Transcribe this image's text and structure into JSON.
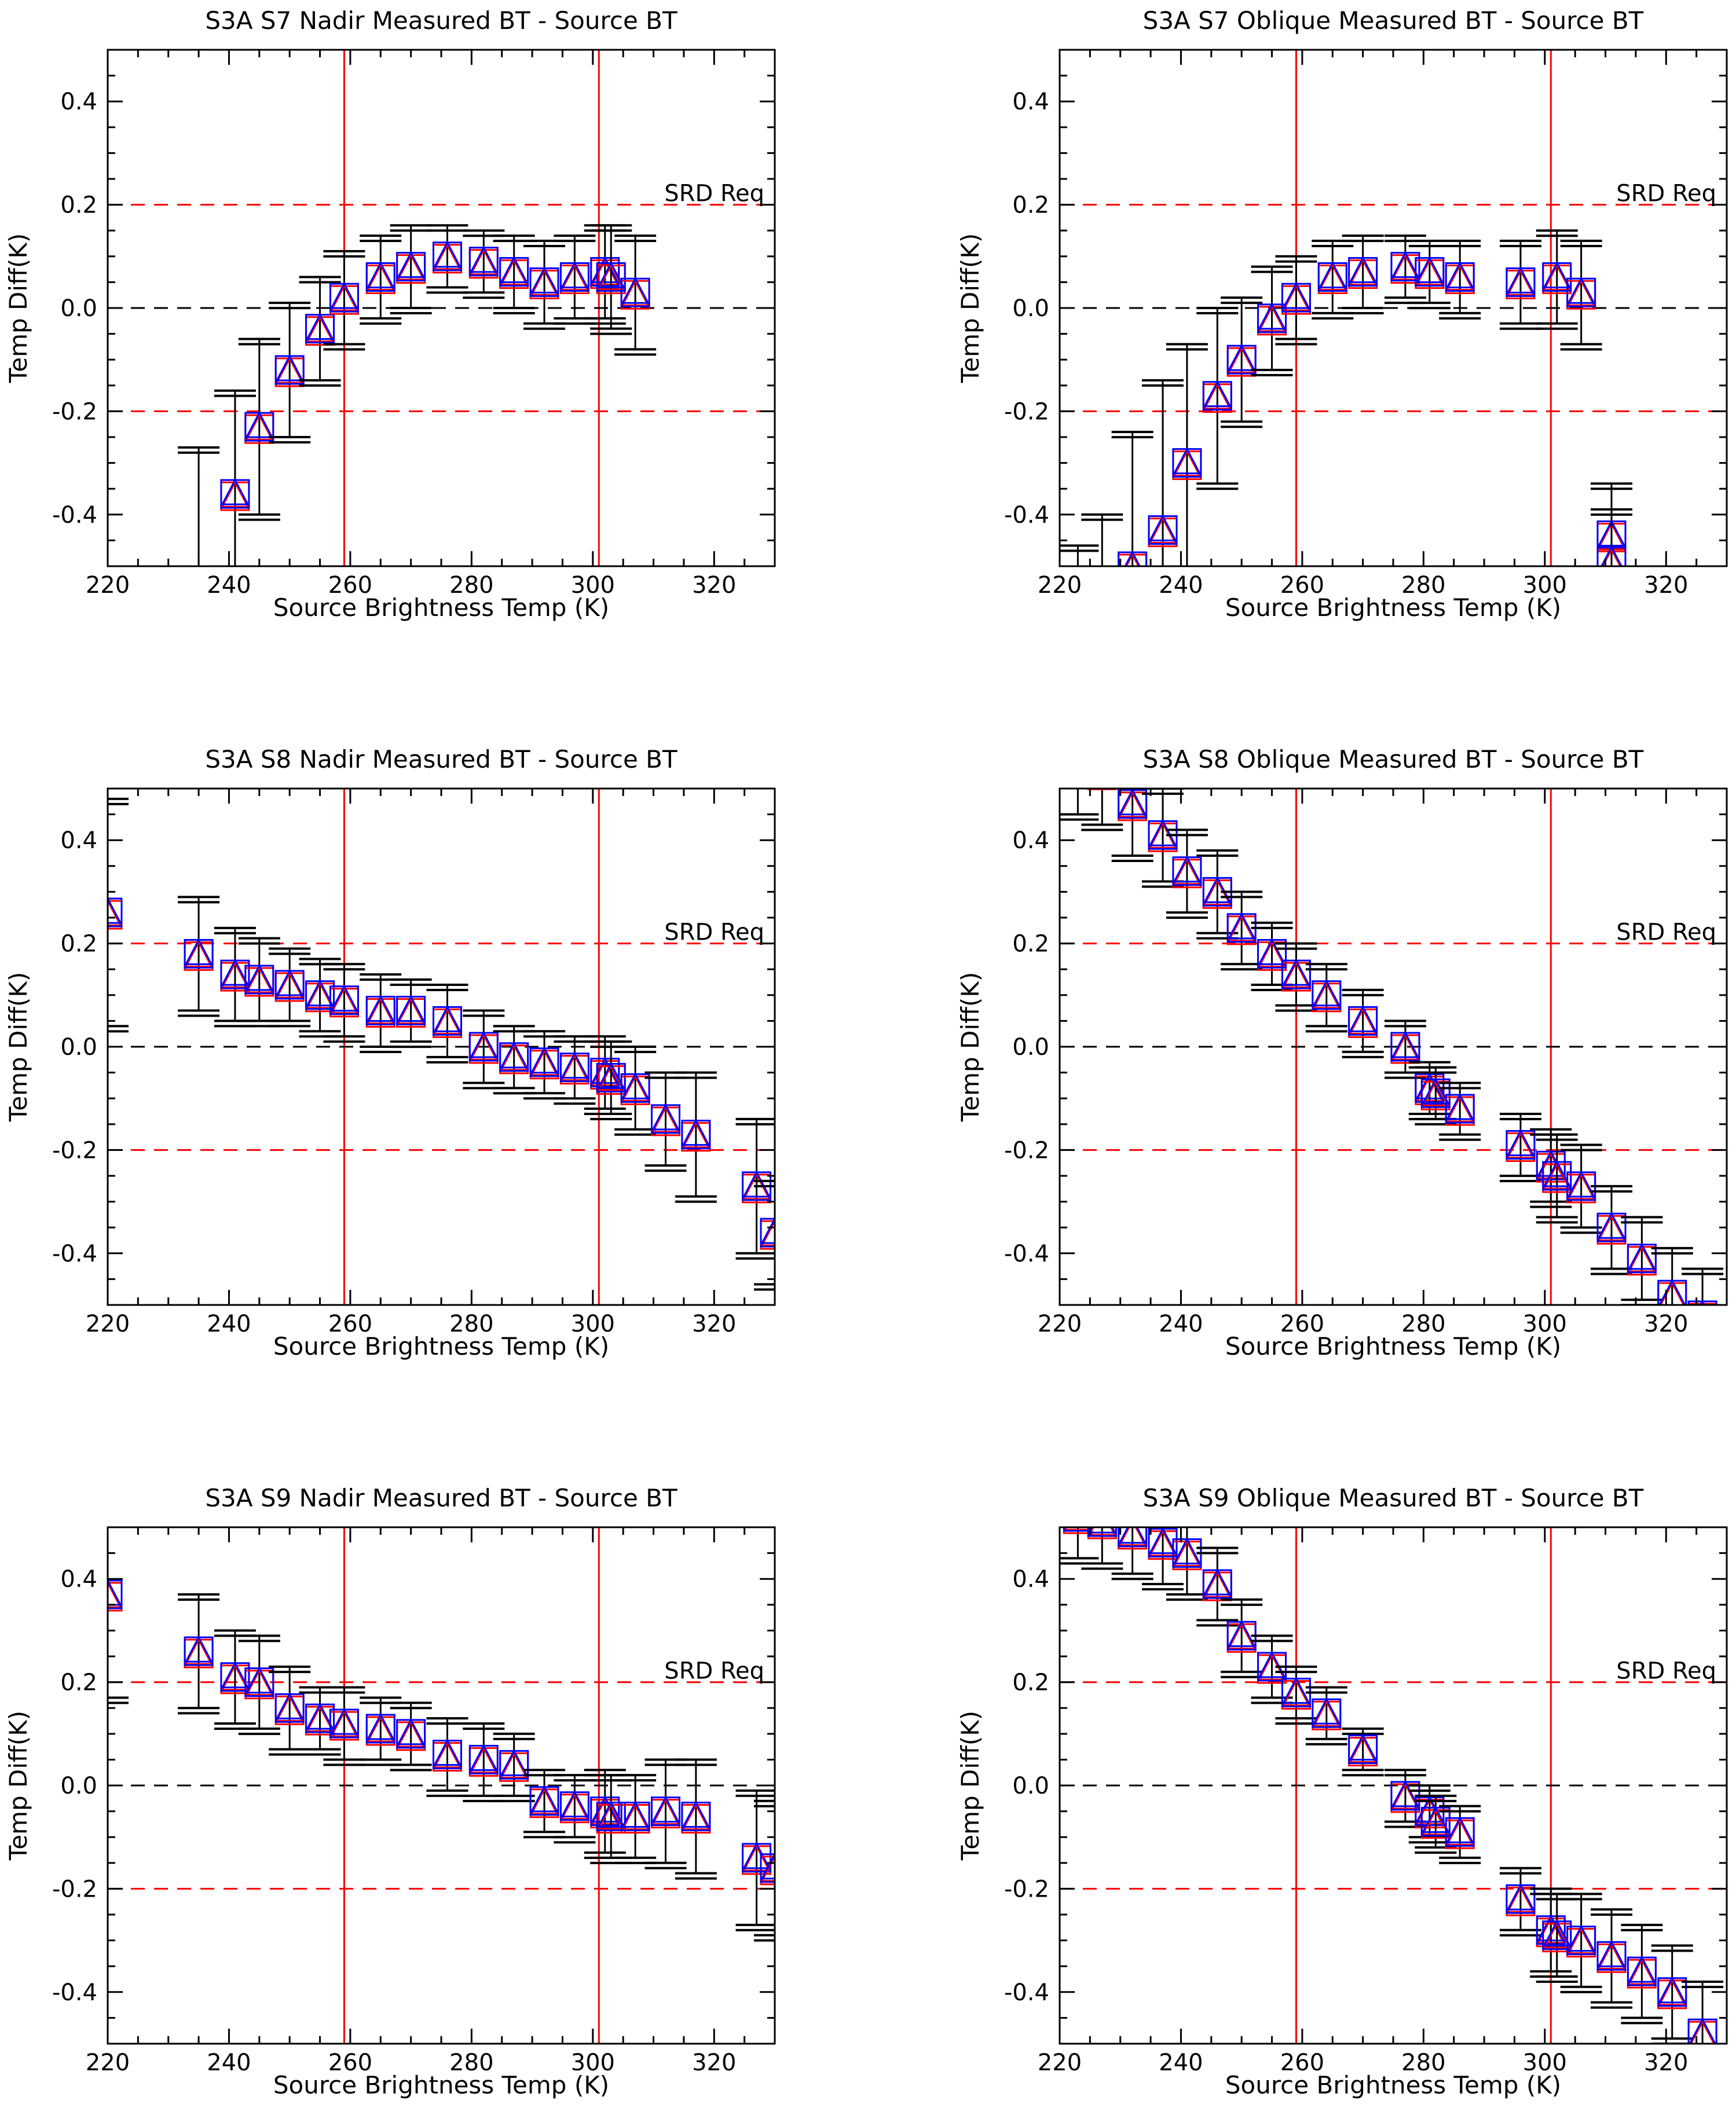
{
  "figure": {
    "tick_label_format": "one decimal",
    "colors": {
      "threshold_lines": "#ff0000",
      "zero_line": "#000000",
      "error_bars": "#000000",
      "series_a": "#ff0000",
      "series_b": "#0000ff"
    }
  },
  "chart_data": [
    {
      "type": "scatter",
      "title": "S3A S7 Nadir Measured BT - Source BT",
      "xlabel": "Source Brightness Temp (K)",
      "ylabel": "Temp Diff(K)",
      "xlim": [
        220,
        330
      ],
      "ylim": [
        -0.5,
        0.5
      ],
      "xticks": [
        220,
        240,
        260,
        280,
        300,
        320
      ],
      "yticks": [
        -0.4,
        -0.2,
        0.0,
        0.2,
        0.4
      ],
      "req_label": "SRD Req",
      "req_levels": [
        0.2,
        -0.2
      ],
      "vlines": [
        259,
        301
      ],
      "points": [
        [
          235,
          -0.55,
          0.28
        ],
        [
          241,
          -0.36,
          0.2
        ],
        [
          245,
          -0.23,
          0.17
        ],
        [
          250,
          -0.12,
          0.13
        ],
        [
          255,
          -0.04,
          0.1
        ],
        [
          259,
          0.02,
          0.09
        ],
        [
          265,
          0.06,
          0.08
        ],
        [
          270,
          0.08,
          0.08
        ],
        [
          276,
          0.1,
          0.06
        ],
        [
          282,
          0.09,
          0.06
        ],
        [
          287,
          0.07,
          0.07
        ],
        [
          292,
          0.05,
          0.08
        ],
        [
          297,
          0.06,
          0.08
        ],
        [
          302,
          0.07,
          0.09
        ],
        [
          303,
          0.06,
          0.1
        ],
        [
          307,
          0.03,
          0.11
        ]
      ]
    },
    {
      "type": "scatter",
      "title": "S3A S7 Oblique Measured BT - Source BT",
      "xlabel": "Source Brightness Temp (K)",
      "ylabel": "Temp Diff(K)",
      "xlim": [
        220,
        330
      ],
      "ylim": [
        -0.5,
        0.5
      ],
      "xticks": [
        220,
        240,
        260,
        280,
        300,
        320
      ],
      "yticks": [
        -0.4,
        -0.2,
        0.0,
        0.2,
        0.4
      ],
      "req_label": "SRD Req",
      "req_levels": [
        0.2,
        -0.2
      ],
      "vlines": [
        259,
        301
      ],
      "points": [
        [
          223,
          -0.6,
          0.14
        ],
        [
          227,
          -0.56,
          0.16
        ],
        [
          232,
          -0.5,
          0.26
        ],
        [
          237,
          -0.43,
          0.29
        ],
        [
          241,
          -0.3,
          0.23
        ],
        [
          246,
          -0.17,
          0.17
        ],
        [
          250,
          -0.1,
          0.12
        ],
        [
          255,
          -0.02,
          0.1
        ],
        [
          259,
          0.02,
          0.08
        ],
        [
          265,
          0.06,
          0.07
        ],
        [
          270,
          0.07,
          0.07
        ],
        [
          277,
          0.08,
          0.06
        ],
        [
          281,
          0.07,
          0.06
        ],
        [
          286,
          0.06,
          0.07
        ],
        [
          296,
          0.05,
          0.08
        ],
        [
          302,
          0.06,
          0.09
        ],
        [
          306,
          0.03,
          0.1
        ],
        [
          311,
          -0.44,
          0.1
        ],
        [
          311,
          -0.49,
          0.1
        ]
      ]
    },
    {
      "type": "scatter",
      "title": "S3A S8 Nadir Measured BT - Source BT",
      "xlabel": "Source Brightness Temp (K)",
      "ylabel": "Temp Diff(K)",
      "xlim": [
        220,
        330
      ],
      "ylim": [
        -0.5,
        0.5
      ],
      "xticks": [
        220,
        240,
        260,
        280,
        300,
        320
      ],
      "yticks": [
        -0.4,
        -0.2,
        0.0,
        0.2,
        0.4
      ],
      "req_label": "SRD Req",
      "req_levels": [
        0.2,
        -0.2
      ],
      "vlines": [
        259,
        301
      ],
      "points": [
        [
          220,
          0.26,
          0.22
        ],
        [
          235,
          0.18,
          0.11
        ],
        [
          241,
          0.14,
          0.09
        ],
        [
          245,
          0.13,
          0.08
        ],
        [
          250,
          0.12,
          0.07
        ],
        [
          255,
          0.1,
          0.07
        ],
        [
          259,
          0.09,
          0.07
        ],
        [
          265,
          0.07,
          0.07
        ],
        [
          270,
          0.07,
          0.06
        ],
        [
          276,
          0.05,
          0.07
        ],
        [
          282,
          0.0,
          0.07
        ],
        [
          287,
          -0.02,
          0.06
        ],
        [
          292,
          -0.03,
          0.06
        ],
        [
          297,
          -0.04,
          0.06
        ],
        [
          302,
          -0.05,
          0.07
        ],
        [
          303,
          -0.06,
          0.07
        ],
        [
          307,
          -0.08,
          0.08
        ],
        [
          312,
          -0.14,
          0.09
        ],
        [
          317,
          -0.17,
          0.12
        ],
        [
          327,
          -0.27,
          0.13
        ],
        [
          330,
          -0.36,
          0.1
        ]
      ]
    },
    {
      "type": "scatter",
      "title": "S3A S8 Oblique Measured BT - Source BT",
      "xlabel": "Source Brightness Temp (K)",
      "ylabel": "Temp Diff(K)",
      "xlim": [
        220,
        330
      ],
      "ylim": [
        -0.5,
        0.5
      ],
      "xticks": [
        220,
        240,
        260,
        280,
        300,
        320
      ],
      "yticks": [
        -0.4,
        -0.2,
        0.0,
        0.2,
        0.4
      ],
      "req_label": "SRD Req",
      "req_levels": [
        0.2,
        -0.2
      ],
      "vlines": [
        259,
        301
      ],
      "points": [
        [
          223,
          0.55,
          0.1
        ],
        [
          227,
          0.53,
          0.1
        ],
        [
          232,
          0.47,
          0.1
        ],
        [
          237,
          0.41,
          0.09
        ],
        [
          241,
          0.34,
          0.08
        ],
        [
          246,
          0.3,
          0.08
        ],
        [
          250,
          0.23,
          0.07
        ],
        [
          255,
          0.18,
          0.06
        ],
        [
          259,
          0.14,
          0.06
        ],
        [
          264,
          0.1,
          0.06
        ],
        [
          270,
          0.05,
          0.06
        ],
        [
          277,
          0.0,
          0.05
        ],
        [
          281,
          -0.08,
          0.05
        ],
        [
          282,
          -0.09,
          0.05
        ],
        [
          286,
          -0.12,
          0.05
        ],
        [
          296,
          -0.19,
          0.06
        ],
        [
          301,
          -0.23,
          0.07
        ],
        [
          302,
          -0.25,
          0.08
        ],
        [
          306,
          -0.27,
          0.08
        ],
        [
          311,
          -0.35,
          0.08
        ],
        [
          316,
          -0.41,
          0.08
        ],
        [
          321,
          -0.48,
          0.09
        ],
        [
          326,
          -0.52,
          0.09
        ]
      ]
    },
    {
      "type": "scatter",
      "title": "S3A S9 Nadir Measured BT - Source BT",
      "xlabel": "Source Brightness Temp (K)",
      "ylabel": "Temp Diff(K)",
      "xlim": [
        220,
        330
      ],
      "ylim": [
        -0.5,
        0.5
      ],
      "xticks": [
        220,
        240,
        260,
        280,
        300,
        320
      ],
      "yticks": [
        -0.4,
        -0.2,
        0.0,
        0.2,
        0.4
      ],
      "req_label": "SRD Req",
      "req_levels": [
        0.2,
        -0.2
      ],
      "vlines": [
        259,
        301
      ],
      "points": [
        [
          220,
          0.37,
          0.2
        ],
        [
          235,
          0.26,
          0.11
        ],
        [
          241,
          0.21,
          0.09
        ],
        [
          245,
          0.2,
          0.09
        ],
        [
          250,
          0.15,
          0.08
        ],
        [
          255,
          0.13,
          0.06
        ],
        [
          259,
          0.12,
          0.07
        ],
        [
          265,
          0.11,
          0.06
        ],
        [
          270,
          0.1,
          0.06
        ],
        [
          276,
          0.06,
          0.07
        ],
        [
          282,
          0.05,
          0.07
        ],
        [
          287,
          0.04,
          0.06
        ],
        [
          292,
          -0.03,
          0.06
        ],
        [
          297,
          -0.04,
          0.06
        ],
        [
          302,
          -0.05,
          0.08
        ],
        [
          303,
          -0.06,
          0.08
        ],
        [
          307,
          -0.06,
          0.08
        ],
        [
          312,
          -0.05,
          0.1
        ],
        [
          317,
          -0.06,
          0.11
        ],
        [
          327,
          -0.14,
          0.13
        ],
        [
          330,
          -0.16,
          0.13
        ]
      ]
    },
    {
      "type": "scatter",
      "title": "S3A S9 Oblique Measured BT - Source BT",
      "xlabel": "Source Brightness Temp (K)",
      "ylabel": "Temp Diff(K)",
      "xlim": [
        220,
        330
      ],
      "ylim": [
        -0.5,
        0.5
      ],
      "xticks": [
        220,
        240,
        260,
        280,
        300,
        320
      ],
      "yticks": [
        -0.4,
        -0.2,
        0.0,
        0.2,
        0.4
      ],
      "req_label": "SRD Req",
      "req_levels": [
        0.2,
        -0.2
      ],
      "vlines": [
        259,
        301
      ],
      "points": [
        [
          223,
          0.52,
          0.08
        ],
        [
          227,
          0.51,
          0.08
        ],
        [
          232,
          0.49,
          0.08
        ],
        [
          237,
          0.47,
          0.08
        ],
        [
          241,
          0.45,
          0.08
        ],
        [
          246,
          0.39,
          0.07
        ],
        [
          250,
          0.29,
          0.07
        ],
        [
          255,
          0.23,
          0.06
        ],
        [
          259,
          0.18,
          0.05
        ],
        [
          264,
          0.14,
          0.05
        ],
        [
          270,
          0.07,
          0.04
        ],
        [
          277,
          -0.02,
          0.05
        ],
        [
          281,
          -0.05,
          0.05
        ],
        [
          282,
          -0.07,
          0.05
        ],
        [
          286,
          -0.09,
          0.05
        ],
        [
          296,
          -0.22,
          0.06
        ],
        [
          301,
          -0.28,
          0.08
        ],
        [
          302,
          -0.29,
          0.08
        ],
        [
          306,
          -0.3,
          0.09
        ],
        [
          311,
          -0.33,
          0.09
        ],
        [
          316,
          -0.36,
          0.09
        ],
        [
          321,
          -0.4,
          0.09
        ],
        [
          326,
          -0.48,
          0.1
        ]
      ]
    }
  ]
}
